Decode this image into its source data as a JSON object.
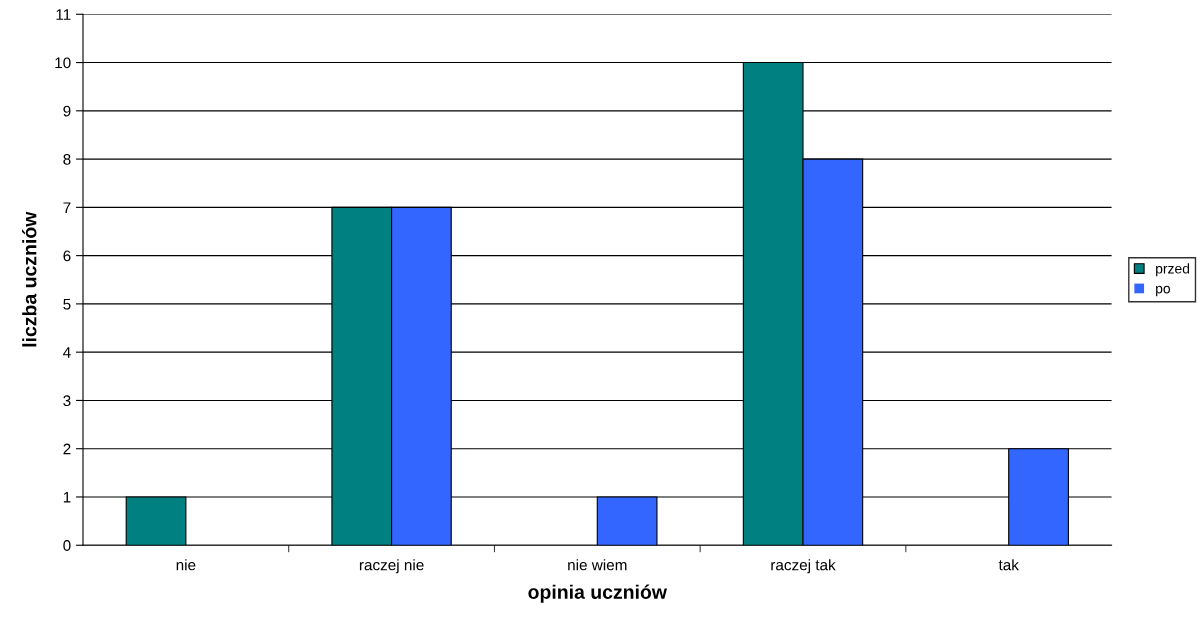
{
  "chart_data": {
    "type": "bar",
    "xlabel": "opinia uczniów",
    "ylabel": "liczba uczniów",
    "categories": [
      "nie",
      "raczej nie",
      "nie wiem",
      "raczej tak",
      "tak"
    ],
    "series": [
      {
        "name": "przed",
        "color": "#008080",
        "values": [
          1,
          7,
          0,
          10,
          0
        ]
      },
      {
        "name": "po",
        "color": "#3366ff",
        "values": [
          0,
          7,
          1,
          8,
          2
        ]
      }
    ],
    "ylim": [
      0,
      11
    ],
    "yticks": [
      0,
      1,
      2,
      3,
      4,
      5,
      6,
      7,
      8,
      9,
      10,
      11
    ],
    "grid": "y",
    "legend": "right"
  }
}
